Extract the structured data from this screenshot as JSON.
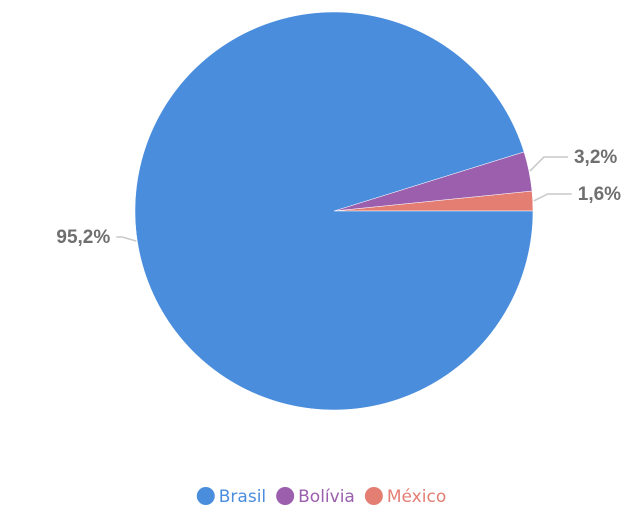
{
  "chart_data": {
    "type": "pie",
    "categories": [
      "Brasil",
      "Bolívia",
      "México"
    ],
    "values": [
      95.2,
      3.2,
      1.6
    ],
    "data_labels": [
      "95,2%",
      "3,2%",
      "1,6%"
    ],
    "colors": [
      "#4a8ddd",
      "#9b5fae",
      "#e47e73"
    ],
    "title": "",
    "legend": {
      "position": "bottom",
      "entries": [
        "Brasil",
        "Bolívia",
        "México"
      ]
    },
    "start_angle": "3 o'clock",
    "direction": "counter-clockwise"
  }
}
